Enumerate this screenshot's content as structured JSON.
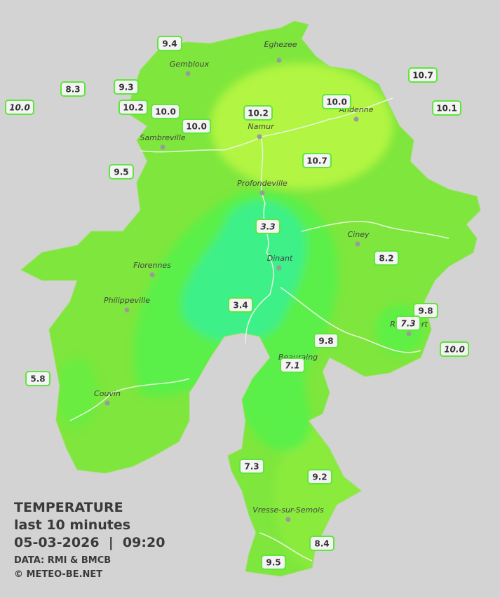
{
  "map": {
    "legend": {
      "title": "TEMPERATURE",
      "period": "last 10 minutes",
      "datetime": "05-03-2026  |  09:20",
      "source": "DATA: RMI & BMCB",
      "copyright": "© METEO-BE.NET"
    },
    "towns": [
      "Eghezee",
      "Gembloux",
      "Andenne",
      "Namur",
      "Sambreville",
      "Profondeville",
      "Ciney",
      "Dinant",
      "Florennes",
      "Philippeville",
      "Rochefort",
      "Beauraing",
      "Couvin",
      "Vresse-sur-Semois"
    ],
    "stations": [
      {
        "value": "9.4",
        "italic": false
      },
      {
        "value": "8.3",
        "italic": false
      },
      {
        "value": "9.3",
        "italic": false
      },
      {
        "value": "10.0",
        "italic": true
      },
      {
        "value": "10.2",
        "italic": false
      },
      {
        "value": "10.0",
        "italic": false
      },
      {
        "value": "10.0",
        "italic": false
      },
      {
        "value": "10.2",
        "italic": false
      },
      {
        "value": "10.0",
        "italic": false
      },
      {
        "value": "10.7",
        "italic": false
      },
      {
        "value": "10.1",
        "italic": false
      },
      {
        "value": "10.7",
        "italic": false
      },
      {
        "value": "9.5",
        "italic": false
      },
      {
        "value": "3.3",
        "italic": true
      },
      {
        "value": "8.2",
        "italic": false
      },
      {
        "value": "3.4",
        "italic": false
      },
      {
        "value": "9.8",
        "italic": false
      },
      {
        "value": "7.3",
        "italic": true
      },
      {
        "value": "10.0",
        "italic": true
      },
      {
        "value": "9.8",
        "italic": false
      },
      {
        "value": "7.1",
        "italic": true
      },
      {
        "value": "5.8",
        "italic": false
      },
      {
        "value": "7.3",
        "italic": false
      },
      {
        "value": "9.2",
        "italic": false
      },
      {
        "value": "8.4",
        "italic": false
      },
      {
        "value": "9.5",
        "italic": false
      }
    ]
  }
}
